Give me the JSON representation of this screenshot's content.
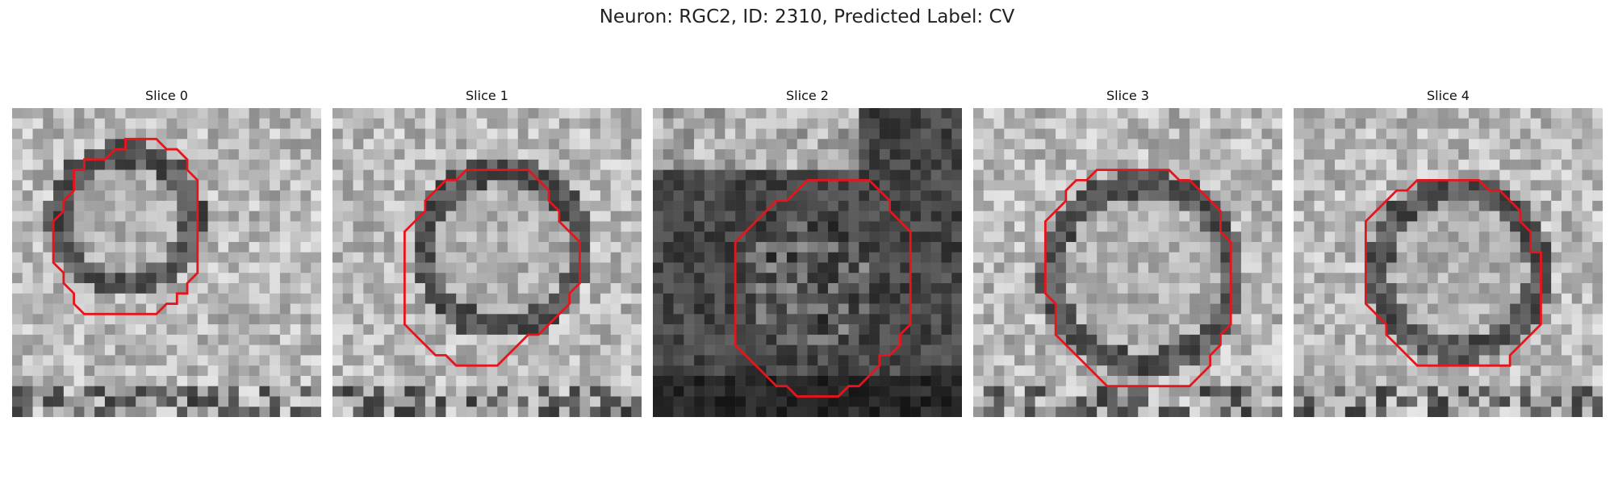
{
  "figure": {
    "title": "Neuron: RGC2, ID: 2310, Predicted Label: CV"
  },
  "panels": [
    {
      "title": "Slice 0",
      "seed": 11,
      "kind": "bright"
    },
    {
      "title": "Slice 1",
      "seed": 23,
      "kind": "bright"
    },
    {
      "title": "Slice 2",
      "seed": 37,
      "kind": "dark"
    },
    {
      "title": "Slice 3",
      "seed": 41,
      "kind": "bright"
    },
    {
      "title": "Slice 4",
      "seed": 53,
      "kind": "bright"
    }
  ],
  "contour_color": "#e8141c"
}
